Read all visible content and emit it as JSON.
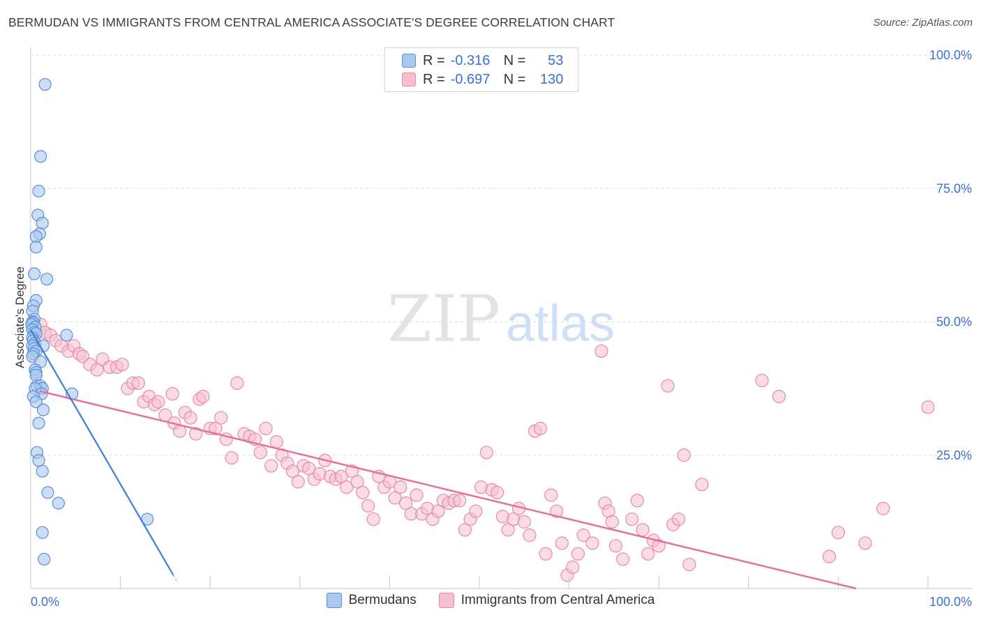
{
  "title": "BERMUDAN VS IMMIGRANTS FROM CENTRAL AMERICA ASSOCIATE'S DEGREE CORRELATION CHART",
  "source": "Source: ZipAtlas.com",
  "watermark": {
    "zip": "ZIP",
    "atlas": "atlas"
  },
  "legend": {
    "rows": [
      {
        "r_label": "R =",
        "r_value": "-0.316",
        "n_label": "N =",
        "n_value": "53"
      },
      {
        "r_label": "R =",
        "r_value": "-0.697",
        "n_label": "N =",
        "n_value": "130"
      }
    ]
  },
  "colors": {
    "blue_fill": "#a9c8f0",
    "blue_stroke": "#5b8fd6",
    "blue_line": "#3b7dd8",
    "pink_fill": "#f6bfd0",
    "pink_stroke": "#e889a8",
    "pink_line": "#e5709a",
    "axis_text": "#3b6fd8",
    "grid": "#dddddd"
  },
  "chart_data": {
    "type": "scatter",
    "title": "BERMUDAN VS IMMIGRANTS FROM CENTRAL AMERICA ASSOCIATE'S DEGREE CORRELATION CHART",
    "xlabel": "",
    "ylabel": "Associate's Degree",
    "xlim": [
      0,
      100
    ],
    "ylim": [
      0,
      100
    ],
    "x_tick_labels": [
      "0.0%",
      "100.0%"
    ],
    "y_tick_values": [
      25,
      50,
      75,
      100
    ],
    "y_tick_labels": [
      "25.0%",
      "50.0%",
      "75.0%",
      "100.0%"
    ],
    "legend_position": "bottom",
    "series": [
      {
        "name": "Bermudans",
        "color": "#a9c8f0",
        "trend": {
          "x": [
            0,
            15.9
          ],
          "y": [
            48.5,
            2.5
          ]
        },
        "points": [
          [
            1.6,
            94.5
          ],
          [
            1.1,
            81.0
          ],
          [
            0.9,
            74.5
          ],
          [
            0.8,
            70.0
          ],
          [
            1.3,
            68.5
          ],
          [
            1.0,
            66.5
          ],
          [
            0.6,
            66.0
          ],
          [
            0.6,
            64.0
          ],
          [
            0.4,
            59.0
          ],
          [
            1.8,
            58.0
          ],
          [
            0.6,
            54.0
          ],
          [
            0.3,
            53.0
          ],
          [
            0.2,
            52.0
          ],
          [
            0.4,
            50.5
          ],
          [
            0.2,
            50.0
          ],
          [
            0.3,
            49.8
          ],
          [
            0.1,
            49.5
          ],
          [
            0.5,
            49.0
          ],
          [
            0.2,
            48.5
          ],
          [
            0.4,
            48.0
          ],
          [
            0.6,
            47.8
          ],
          [
            0.2,
            47.0
          ],
          [
            4.0,
            47.5
          ],
          [
            0.3,
            46.5
          ],
          [
            0.5,
            46.0
          ],
          [
            0.2,
            45.5
          ],
          [
            0.4,
            45.0
          ],
          [
            1.4,
            45.5
          ],
          [
            0.6,
            44.5
          ],
          [
            0.3,
            44.0
          ],
          [
            0.2,
            43.5
          ],
          [
            1.1,
            42.5
          ],
          [
            0.5,
            41.0
          ],
          [
            0.6,
            40.5
          ],
          [
            0.6,
            40.0
          ],
          [
            0.7,
            38.0
          ],
          [
            1.1,
            38.0
          ],
          [
            1.3,
            37.5
          ],
          [
            0.5,
            37.5
          ],
          [
            1.2,
            36.5
          ],
          [
            4.6,
            36.5
          ],
          [
            0.3,
            36.0
          ],
          [
            0.6,
            35.0
          ],
          [
            1.4,
            33.5
          ],
          [
            0.9,
            31.0
          ],
          [
            0.7,
            25.5
          ],
          [
            0.9,
            24.0
          ],
          [
            1.3,
            22.0
          ],
          [
            1.9,
            18.0
          ],
          [
            3.1,
            16.0
          ],
          [
            13.0,
            13.0
          ],
          [
            1.3,
            10.5
          ],
          [
            1.5,
            5.5
          ]
        ]
      },
      {
        "name": "Immigrants from Central America",
        "color": "#f6bfd0",
        "trend": {
          "x": [
            1.0,
            92.0
          ],
          "y": [
            37.0,
            0.0
          ]
        },
        "points": [
          [
            1.1,
            49.5
          ],
          [
            1.6,
            48.0
          ],
          [
            2.2,
            47.5
          ],
          [
            2.8,
            46.5
          ],
          [
            3.4,
            45.5
          ],
          [
            4.2,
            44.5
          ],
          [
            4.8,
            45.5
          ],
          [
            5.4,
            44.0
          ],
          [
            5.8,
            43.5
          ],
          [
            6.6,
            42.0
          ],
          [
            7.4,
            41.0
          ],
          [
            8.0,
            43.0
          ],
          [
            8.8,
            41.5
          ],
          [
            9.6,
            41.5
          ],
          [
            10.2,
            42.0
          ],
          [
            10.8,
            37.5
          ],
          [
            11.4,
            38.5
          ],
          [
            12.0,
            38.5
          ],
          [
            12.6,
            35.0
          ],
          [
            13.2,
            36.0
          ],
          [
            13.8,
            34.5
          ],
          [
            14.2,
            35.0
          ],
          [
            15.0,
            32.5
          ],
          [
            15.8,
            36.5
          ],
          [
            16.0,
            31.0
          ],
          [
            16.6,
            29.5
          ],
          [
            17.2,
            33.0
          ],
          [
            17.8,
            32.0
          ],
          [
            18.4,
            29.0
          ],
          [
            18.8,
            35.5
          ],
          [
            19.2,
            36.0
          ],
          [
            20.0,
            30.0
          ],
          [
            20.6,
            30.0
          ],
          [
            21.2,
            32.0
          ],
          [
            21.8,
            28.0
          ],
          [
            22.4,
            24.5
          ],
          [
            23.0,
            38.5
          ],
          [
            23.8,
            29.0
          ],
          [
            24.4,
            28.5
          ],
          [
            25.0,
            28.0
          ],
          [
            25.6,
            25.5
          ],
          [
            26.2,
            30.0
          ],
          [
            26.8,
            23.0
          ],
          [
            27.4,
            27.5
          ],
          [
            28.0,
            25.0
          ],
          [
            28.6,
            23.5
          ],
          [
            29.2,
            22.0
          ],
          [
            29.8,
            20.0
          ],
          [
            30.4,
            23.0
          ],
          [
            31.0,
            22.5
          ],
          [
            31.6,
            20.5
          ],
          [
            32.2,
            21.5
          ],
          [
            32.8,
            24.0
          ],
          [
            33.4,
            21.0
          ],
          [
            34.0,
            20.5
          ],
          [
            34.6,
            21.0
          ],
          [
            35.2,
            19.0
          ],
          [
            35.8,
            22.0
          ],
          [
            36.4,
            20.0
          ],
          [
            37.0,
            18.0
          ],
          [
            37.6,
            15.5
          ],
          [
            38.2,
            13.0
          ],
          [
            38.8,
            21.0
          ],
          [
            39.4,
            19.0
          ],
          [
            40.0,
            20.0
          ],
          [
            40.6,
            17.0
          ],
          [
            41.2,
            19.0
          ],
          [
            41.8,
            16.0
          ],
          [
            42.4,
            14.0
          ],
          [
            43.0,
            17.5
          ],
          [
            43.6,
            14.0
          ],
          [
            44.2,
            15.0
          ],
          [
            44.8,
            13.0
          ],
          [
            45.4,
            14.5
          ],
          [
            46.0,
            16.5
          ],
          [
            46.6,
            16.0
          ],
          [
            47.2,
            16.5
          ],
          [
            47.8,
            16.5
          ],
          [
            48.4,
            11.0
          ],
          [
            49.0,
            13.0
          ],
          [
            49.6,
            14.5
          ],
          [
            50.2,
            19.0
          ],
          [
            50.8,
            25.5
          ],
          [
            51.4,
            18.5
          ],
          [
            52.0,
            18.0
          ],
          [
            52.6,
            13.5
          ],
          [
            53.2,
            11.0
          ],
          [
            53.8,
            13.0
          ],
          [
            54.4,
            15.0
          ],
          [
            55.0,
            12.5
          ],
          [
            55.6,
            10.0
          ],
          [
            56.2,
            29.5
          ],
          [
            56.8,
            30.0
          ],
          [
            57.4,
            6.5
          ],
          [
            58.0,
            17.5
          ],
          [
            58.6,
            14.5
          ],
          [
            59.2,
            8.5
          ],
          [
            59.8,
            2.5
          ],
          [
            60.4,
            4.0
          ],
          [
            61.0,
            6.5
          ],
          [
            61.6,
            10.0
          ],
          [
            62.6,
            8.5
          ],
          [
            63.6,
            44.5
          ],
          [
            64.0,
            16.0
          ],
          [
            64.4,
            14.5
          ],
          [
            64.8,
            12.5
          ],
          [
            65.2,
            8.0
          ],
          [
            66.0,
            5.5
          ],
          [
            67.0,
            13.0
          ],
          [
            67.6,
            16.5
          ],
          [
            68.2,
            11.0
          ],
          [
            68.8,
            6.5
          ],
          [
            69.4,
            9.0
          ],
          [
            70.0,
            8.0
          ],
          [
            71.0,
            38.0
          ],
          [
            71.6,
            12.0
          ],
          [
            72.2,
            13.0
          ],
          [
            72.8,
            25.0
          ],
          [
            73.4,
            4.5
          ],
          [
            74.8,
            19.5
          ],
          [
            81.5,
            39.0
          ],
          [
            83.4,
            36.0
          ],
          [
            89.0,
            6.0
          ],
          [
            90.0,
            10.5
          ],
          [
            93.0,
            8.5
          ],
          [
            95.0,
            15.0
          ],
          [
            100.0,
            34.0
          ]
        ]
      }
    ]
  },
  "bottom_legend": {
    "items": [
      {
        "label": "Bermudans"
      },
      {
        "label": "Immigrants from Central America"
      }
    ]
  }
}
